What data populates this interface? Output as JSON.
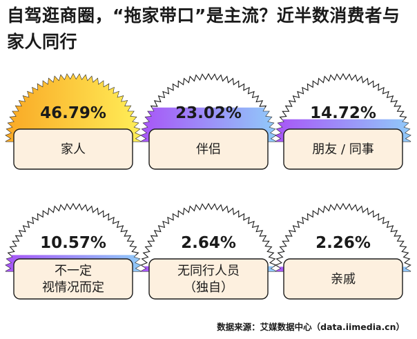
{
  "chart_data": {
    "type": "bar",
    "title": "自驾逛商圈，“拖家带口”是主流？近半数消费者与家人同行",
    "categories": [
      "家人",
      "伴侣",
      "朋友 / 同事",
      "不一定 视情况而定",
      "无同行人员 （独自）",
      "亲戚"
    ],
    "values": [
      46.79,
      23.02,
      14.72,
      10.57,
      2.64,
      2.26
    ],
    "value_labels": [
      "46.79%",
      "23.02%",
      "14.72%",
      "10.57%",
      "2.64%",
      "2.26%"
    ],
    "label_lines": [
      [
        "家人"
      ],
      [
        "伴侣"
      ],
      [
        "朋友 / 同事"
      ],
      [
        "不一定",
        "视情况而定"
      ],
      [
        "无同行人员",
        "（独自）"
      ],
      [
        "亲戚"
      ]
    ],
    "unit": "%"
  },
  "source": "数据来源：艾媒数据中心（data.iimedia.cn）",
  "colors": {
    "top_fill_a": "#f9a825",
    "top_fill_b": "#ffee58",
    "other_fill_a": "#a855f7",
    "other_fill_b": "#90caf9",
    "label_box": "#fdf0df",
    "outline": "#1a1a1a"
  }
}
